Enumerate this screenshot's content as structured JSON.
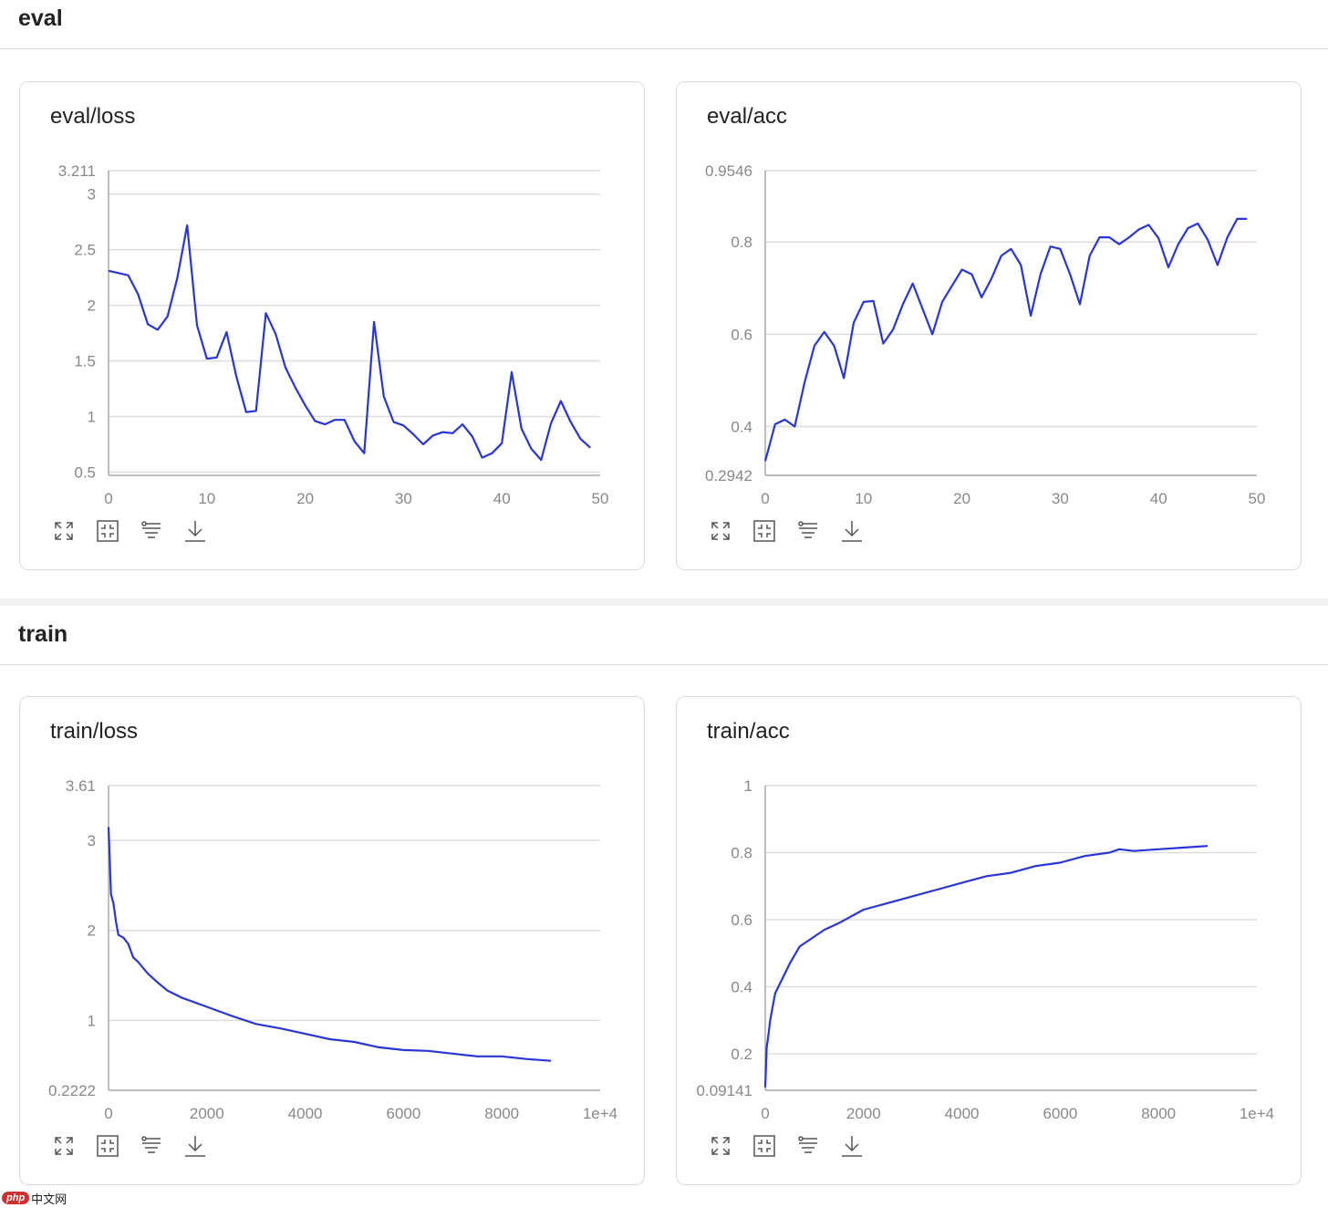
{
  "sections": [
    {
      "title": "eval"
    },
    {
      "title": "train"
    }
  ],
  "toolbar_icons": [
    "expand-icon",
    "fit-view-icon",
    "filter-icon",
    "download-icon"
  ],
  "theme": {
    "line_color": "#2a35d8",
    "grid_color": "#dedede",
    "axis_text_color": "#888888"
  },
  "watermark": {
    "logo": "php",
    "text": "中文网"
  },
  "chart_data": [
    {
      "id": "eval_loss",
      "title": "eval/loss",
      "type": "line",
      "xlim": [
        0,
        50
      ],
      "ylim": [
        0.4712,
        3.211
      ],
      "x_ticks": [
        0,
        10,
        20,
        30,
        40,
        50
      ],
      "x_tick_labels": [
        "0",
        "10",
        "20",
        "30",
        "40",
        "50"
      ],
      "y_ticks": [
        0.5,
        1,
        1.5,
        2,
        2.5,
        3,
        3.211
      ],
      "y_tick_labels": [
        "0.5",
        "1",
        "1.5",
        "2",
        "2.5",
        "3",
        "3.211"
      ],
      "x": [
        0,
        2,
        3,
        4,
        5,
        6,
        7,
        8,
        9,
        10,
        11,
        12,
        13,
        14,
        15,
        16,
        17,
        18,
        19,
        20,
        21,
        22,
        23,
        24,
        25,
        26,
        27,
        28,
        29,
        30,
        31,
        32,
        33,
        34,
        35,
        36,
        37,
        38,
        39,
        40,
        41,
        42,
        43,
        44,
        45,
        46,
        47,
        48,
        49
      ],
      "y": [
        2.31,
        2.27,
        2.1,
        1.83,
        1.78,
        1.9,
        2.25,
        2.72,
        1.82,
        1.52,
        1.53,
        1.76,
        1.36,
        1.04,
        1.05,
        1.93,
        1.74,
        1.44,
        1.26,
        1.1,
        0.96,
        0.93,
        0.97,
        0.97,
        0.78,
        0.67,
        1.85,
        1.18,
        0.95,
        0.92,
        0.84,
        0.75,
        0.83,
        0.86,
        0.85,
        0.93,
        0.82,
        0.63,
        0.67,
        0.76,
        1.4,
        0.89,
        0.71,
        0.61,
        0.94,
        1.14,
        0.95,
        0.8,
        0.72
      ]
    },
    {
      "id": "eval_acc",
      "title": "eval/acc",
      "type": "line",
      "xlim": [
        0,
        50
      ],
      "ylim": [
        0.2942,
        0.9546
      ],
      "x_ticks": [
        0,
        10,
        20,
        30,
        40,
        50
      ],
      "x_tick_labels": [
        "0",
        "10",
        "20",
        "30",
        "40",
        "50"
      ],
      "y_ticks": [
        0.2942,
        0.4,
        0.6,
        0.8,
        0.9546
      ],
      "y_tick_labels": [
        "0.2942",
        "0.4",
        "0.6",
        "0.8",
        "0.9546"
      ],
      "x": [
        0,
        1,
        2,
        3,
        4,
        5,
        6,
        7,
        8,
        9,
        10,
        11,
        12,
        13,
        14,
        15,
        16,
        17,
        18,
        19,
        20,
        21,
        22,
        23,
        24,
        25,
        26,
        27,
        28,
        29,
        30,
        31,
        32,
        33,
        34,
        35,
        36,
        37,
        38,
        39,
        40,
        41,
        42,
        43,
        44,
        45,
        46,
        47,
        48,
        49
      ],
      "y": [
        0.325,
        0.405,
        0.415,
        0.4,
        0.495,
        0.575,
        0.605,
        0.575,
        0.505,
        0.625,
        0.67,
        0.672,
        0.58,
        0.61,
        0.665,
        0.71,
        0.655,
        0.6,
        0.67,
        0.705,
        0.74,
        0.73,
        0.68,
        0.72,
        0.77,
        0.785,
        0.75,
        0.64,
        0.73,
        0.79,
        0.785,
        0.73,
        0.665,
        0.77,
        0.81,
        0.81,
        0.795,
        0.81,
        0.827,
        0.837,
        0.808,
        0.745,
        0.795,
        0.83,
        0.84,
        0.805,
        0.75,
        0.81,
        0.85,
        0.85
      ]
    },
    {
      "id": "train_loss",
      "title": "train/loss",
      "type": "line",
      "xlim": [
        0,
        10000
      ],
      "ylim": [
        0.2222,
        3.61
      ],
      "x_ticks": [
        0,
        2000,
        4000,
        6000,
        8000,
        10000
      ],
      "x_tick_labels": [
        "0",
        "2000",
        "4000",
        "6000",
        "8000",
        "1e+4"
      ],
      "y_ticks": [
        0.2222,
        1,
        2,
        3,
        3.61
      ],
      "y_tick_labels": [
        "0.2222",
        "1",
        "2",
        "3",
        "3.61"
      ],
      "x": [
        0,
        20,
        50,
        100,
        150,
        200,
        300,
        400,
        500,
        600,
        800,
        1000,
        1200,
        1500,
        2000,
        2500,
        3000,
        3500,
        4000,
        4500,
        5000,
        5500,
        6000,
        6500,
        7000,
        7500,
        8000,
        8500,
        9000
      ],
      "y": [
        3.15,
        2.85,
        2.4,
        2.3,
        2.1,
        1.95,
        1.92,
        1.85,
        1.7,
        1.65,
        1.52,
        1.42,
        1.33,
        1.25,
        1.15,
        1.05,
        0.96,
        0.91,
        0.85,
        0.79,
        0.76,
        0.7,
        0.67,
        0.66,
        0.63,
        0.6,
        0.6,
        0.57,
        0.55
      ]
    },
    {
      "id": "train_acc",
      "title": "train/acc",
      "type": "line",
      "xlim": [
        0,
        10000
      ],
      "ylim": [
        0.09141,
        1.0
      ],
      "x_ticks": [
        0,
        2000,
        4000,
        6000,
        8000,
        10000
      ],
      "x_tick_labels": [
        "0",
        "2000",
        "4000",
        "6000",
        "8000",
        "1e+4"
      ],
      "y_ticks": [
        0.09141,
        0.2,
        0.4,
        0.6,
        0.8,
        1.0
      ],
      "y_tick_labels": [
        "0.09141",
        "0.2",
        "0.4",
        "0.6",
        "0.8",
        "1"
      ],
      "x": [
        0,
        30,
        60,
        100,
        150,
        200,
        300,
        400,
        500,
        700,
        900,
        1200,
        1500,
        2000,
        2500,
        3000,
        3500,
        4000,
        4500,
        5000,
        5500,
        6000,
        6500,
        7000,
        7200,
        7500,
        8000,
        8500,
        9000
      ],
      "y": [
        0.1,
        0.22,
        0.25,
        0.3,
        0.34,
        0.38,
        0.41,
        0.44,
        0.47,
        0.52,
        0.54,
        0.57,
        0.59,
        0.63,
        0.65,
        0.67,
        0.69,
        0.71,
        0.73,
        0.74,
        0.76,
        0.77,
        0.79,
        0.8,
        0.81,
        0.805,
        0.81,
        0.815,
        0.82
      ]
    }
  ]
}
